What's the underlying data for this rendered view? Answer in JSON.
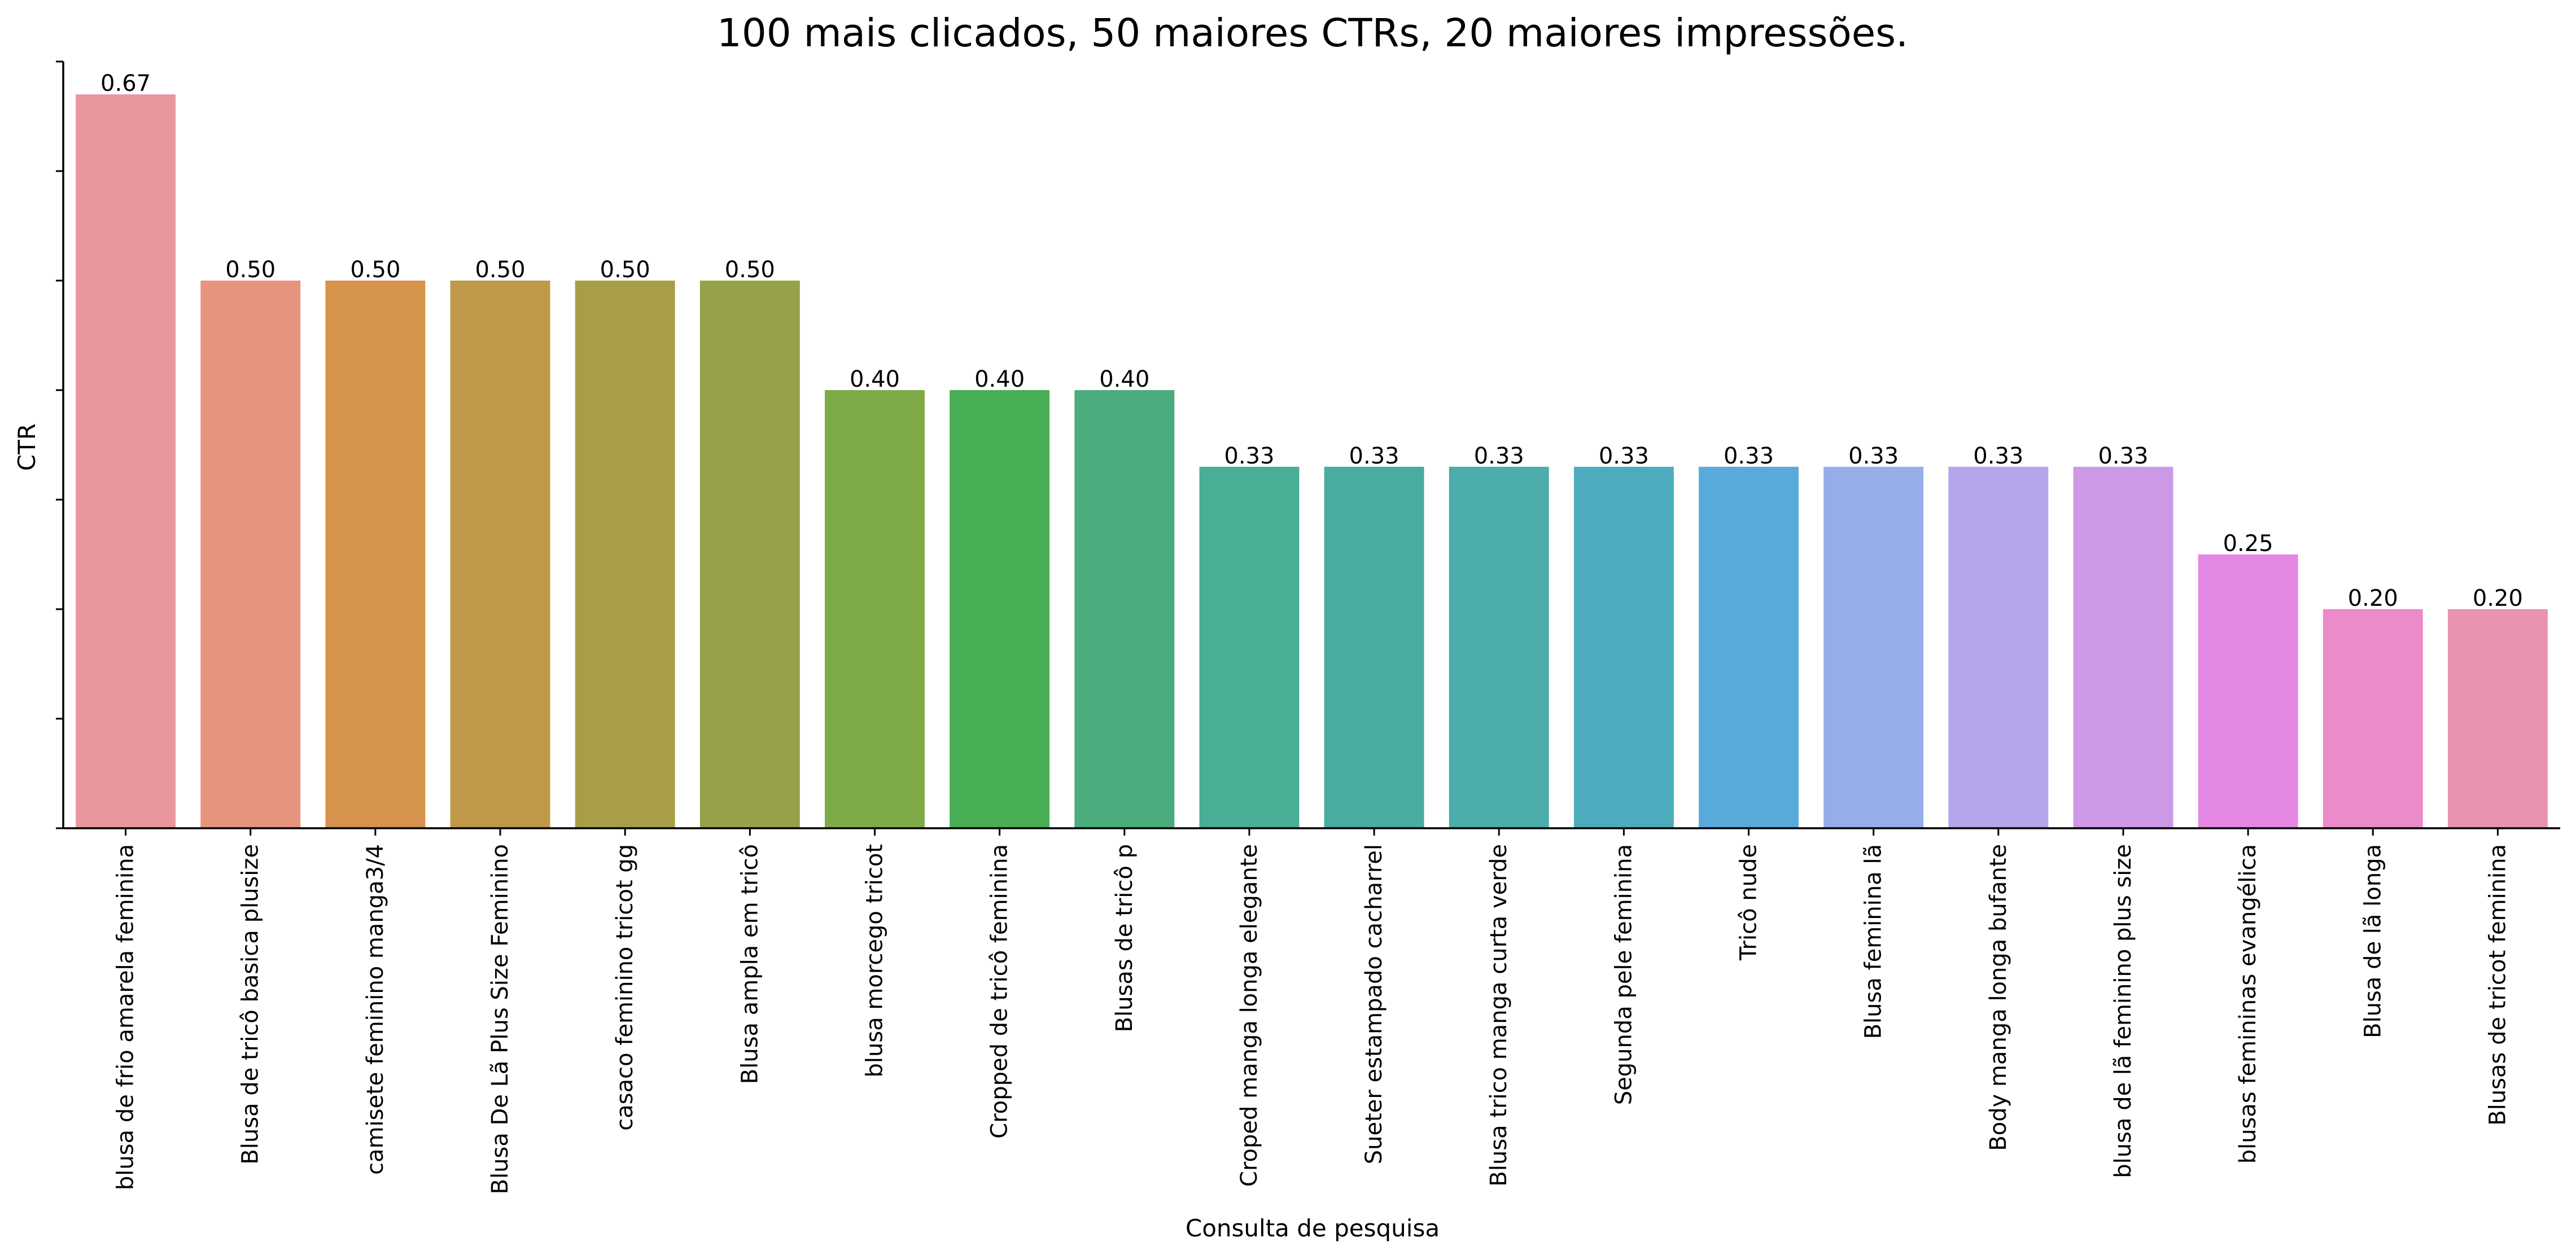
{
  "chart_data": {
    "type": "bar",
    "title": "100 mais clicados, 50 maiores CTRs, 20 maiores impressões.",
    "xlabel": "Consulta de pesquisa",
    "ylabel": "CTR",
    "ylim": [
      0,
      0.7
    ],
    "grid": false,
    "y_tick_labels_shown": false,
    "categories": [
      "blusa de frio amarela feminina",
      "Blusa de tricô basica plusize",
      "camisete feminino manga3/4",
      "Blusa De Lã Plus Size Feminino",
      "casaco feminino tricot gg",
      "Blusa ampla em tricô",
      "blusa morcego tricot",
      "Cropped de tricô feminina",
      "Blusas de tricô p",
      "Croped manga longa elegante",
      "Sueter estampado cacharrel",
      "Blusa trico manga curta verde",
      "Segunda pele feminina",
      "Tricô nude",
      "Blusa feminina lã",
      "Body manga longa bufante",
      "blusa de lã feminino plus size",
      "blusas femininas evangélica",
      "Blusa de lã longa",
      "Blusas de tricot feminina"
    ],
    "values": [
      0.67,
      0.5,
      0.5,
      0.5,
      0.5,
      0.5,
      0.4,
      0.4,
      0.4,
      0.33,
      0.33,
      0.33,
      0.33,
      0.33,
      0.33,
      0.33,
      0.33,
      0.25,
      0.2,
      0.2
    ],
    "data_labels": [
      "0.67",
      "0.50",
      "0.50",
      "0.50",
      "0.50",
      "0.50",
      "0.40",
      "0.40",
      "0.40",
      "0.33",
      "0.33",
      "0.33",
      "0.33",
      "0.33",
      "0.33",
      "0.33",
      "0.33",
      "0.25",
      "0.20",
      "0.20"
    ],
    "colors": [
      "#e9969f",
      "#e6947e",
      "#d5934d",
      "#bf9849",
      "#a99e48",
      "#97a147",
      "#7eaa47",
      "#48ae53",
      "#4aac7c",
      "#4aad95",
      "#4aab9f",
      "#4bacaa",
      "#4cacbd",
      "#58aadb",
      "#95aee9",
      "#b6a5eb",
      "#cd99e7",
      "#e487e3",
      "#eb8bc9",
      "#e993b3"
    ]
  }
}
